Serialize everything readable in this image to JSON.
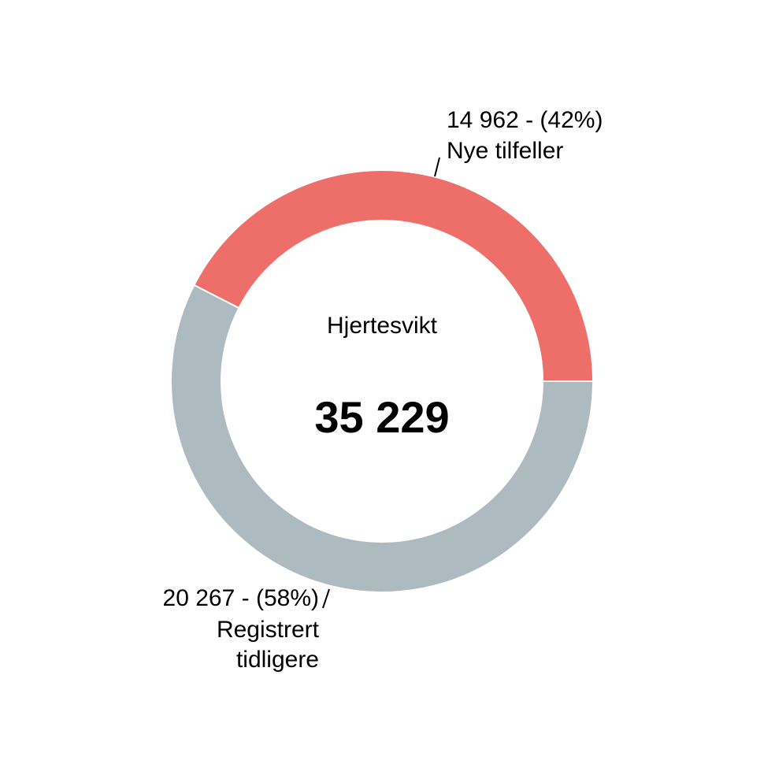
{
  "chart_data": {
    "type": "donut",
    "center_title": "Hjertesvikt",
    "center_value": 35229,
    "center_value_label": "35 229",
    "categories": [
      "Nye tilfeller",
      "Registrert tidligere"
    ],
    "values": [
      14962,
      20267
    ],
    "value_labels": [
      "14 962 - (42%)",
      "20 267 - (58%)"
    ],
    "colors": [
      "#ee6f6a",
      "#adbac0"
    ]
  }
}
